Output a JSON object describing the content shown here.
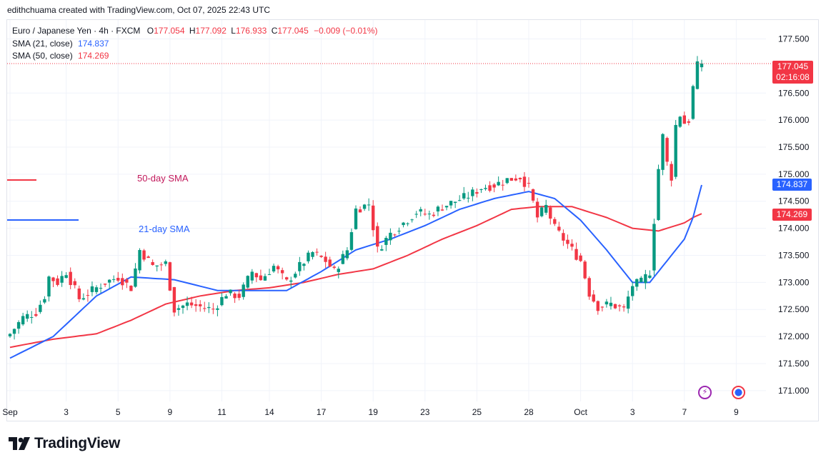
{
  "header": {
    "caption": "edithchuama created with TradingView.com, Oct 07, 2025 22:43 UTC"
  },
  "legend": {
    "symbol": "Euro / Japanese Yen · 4h · FXCM",
    "o_key": "O",
    "o_val": "177.054",
    "h_key": "H",
    "h_val": "177.092",
    "l_key": "L",
    "l_val": "176.933",
    "c_key": "C",
    "c_val": "177.045",
    "change": "−0.009 (−0.01%)",
    "sma21_label": "SMA (21, close)",
    "sma21_val": "174.837",
    "sma50_label": "SMA (50, close)",
    "sma50_val": "174.269"
  },
  "badges": {
    "last_price": "177.045",
    "countdown": "02:16:08",
    "sma21": "174.837",
    "sma50": "174.269"
  },
  "annotations": {
    "sma50": "50-day SMA",
    "sma21": "21-day SMA"
  },
  "logo": {
    "text": "TradingView"
  },
  "colors": {
    "up": "#089981",
    "down": "#f23645",
    "sma21": "#2962ff",
    "sma50": "#f23645",
    "grid": "#f0f3fa"
  },
  "chart_data": {
    "type": "candlestick",
    "title": "Euro / Japanese Yen · 4h · FXCM",
    "ylim": [
      170.8,
      177.85
    ],
    "y_ticks": [
      "171.000",
      "171.500",
      "172.000",
      "172.500",
      "173.000",
      "173.500",
      "174.000",
      "174.500",
      "175.000",
      "175.500",
      "176.000",
      "176.500",
      "177.500"
    ],
    "x_ticks": [
      {
        "label": "Sep",
        "i": 0
      },
      {
        "label": "3",
        "i": 13
      },
      {
        "label": "5",
        "i": 25
      },
      {
        "label": "9",
        "i": 37
      },
      {
        "label": "11",
        "i": 49
      },
      {
        "label": "14",
        "i": 60
      },
      {
        "label": "17",
        "i": 72
      },
      {
        "label": "19",
        "i": 84
      },
      {
        "label": "23",
        "i": 96
      },
      {
        "label": "25",
        "i": 108
      },
      {
        "label": "28",
        "i": 120
      },
      {
        "label": "Oct",
        "i": 132
      },
      {
        "label": "3",
        "i": 144
      },
      {
        "label": "7",
        "i": 156
      },
      {
        "label": "9",
        "i": 168
      }
    ],
    "n_slots": 180,
    "close_keypoints": [
      [
        0,
        172.05
      ],
      [
        3,
        172.35
      ],
      [
        6,
        172.45
      ],
      [
        8,
        172.75
      ],
      [
        9,
        173.1
      ],
      [
        11,
        173.0
      ],
      [
        13,
        173.2
      ],
      [
        16,
        172.7
      ],
      [
        19,
        172.85
      ],
      [
        22,
        173.0
      ],
      [
        25,
        173.1
      ],
      [
        28,
        172.9
      ],
      [
        30,
        173.6
      ],
      [
        33,
        173.3
      ],
      [
        36,
        173.35
      ],
      [
        38,
        172.5
      ],
      [
        41,
        172.6
      ],
      [
        44,
        172.55
      ],
      [
        47,
        172.5
      ],
      [
        50,
        172.8
      ],
      [
        53,
        172.75
      ],
      [
        56,
        173.2
      ],
      [
        58,
        173.05
      ],
      [
        61,
        173.3
      ],
      [
        64,
        173.0
      ],
      [
        67,
        173.3
      ],
      [
        70,
        173.55
      ],
      [
        73,
        173.4
      ],
      [
        75,
        173.2
      ],
      [
        78,
        173.6
      ],
      [
        80,
        174.35
      ],
      [
        83,
        174.45
      ],
      [
        85,
        173.6
      ],
      [
        88,
        173.9
      ],
      [
        91,
        174.1
      ],
      [
        94,
        174.3
      ],
      [
        97,
        174.25
      ],
      [
        100,
        174.4
      ],
      [
        103,
        174.5
      ],
      [
        106,
        174.6
      ],
      [
        109,
        174.75
      ],
      [
        112,
        174.8
      ],
      [
        115,
        174.9
      ],
      [
        118,
        174.95
      ],
      [
        120,
        174.75
      ],
      [
        122,
        174.2
      ],
      [
        124,
        174.4
      ],
      [
        126,
        174.0
      ],
      [
        128,
        173.8
      ],
      [
        130,
        173.6
      ],
      [
        132,
        173.4
      ],
      [
        134,
        172.8
      ],
      [
        136,
        172.55
      ],
      [
        139,
        172.6
      ],
      [
        142,
        172.5
      ],
      [
        144,
        172.95
      ],
      [
        146,
        173.0
      ],
      [
        148,
        173.2
      ],
      [
        150,
        175.1
      ],
      [
        151,
        175.7
      ],
      [
        152,
        175.2
      ],
      [
        153,
        174.95
      ],
      [
        154,
        175.9
      ],
      [
        155,
        176.1
      ],
      [
        156,
        175.95
      ],
      [
        157,
        176.0
      ],
      [
        158,
        176.6
      ],
      [
        159,
        177.0
      ],
      [
        160,
        177.04
      ]
    ],
    "sma21_keypoints": [
      [
        0,
        171.6
      ],
      [
        10,
        172.0
      ],
      [
        20,
        172.75
      ],
      [
        28,
        173.1
      ],
      [
        38,
        173.05
      ],
      [
        48,
        172.85
      ],
      [
        56,
        172.85
      ],
      [
        64,
        172.85
      ],
      [
        72,
        173.2
      ],
      [
        80,
        173.6
      ],
      [
        88,
        173.8
      ],
      [
        96,
        174.05
      ],
      [
        104,
        174.35
      ],
      [
        112,
        174.55
      ],
      [
        120,
        174.68
      ],
      [
        126,
        174.55
      ],
      [
        132,
        174.15
      ],
      [
        138,
        173.6
      ],
      [
        144,
        173.0
      ],
      [
        148,
        173.0
      ],
      [
        152,
        173.4
      ],
      [
        156,
        173.8
      ],
      [
        158,
        174.2
      ],
      [
        160,
        174.8
      ]
    ],
    "sma50_keypoints": [
      [
        0,
        171.8
      ],
      [
        10,
        171.95
      ],
      [
        20,
        172.05
      ],
      [
        28,
        172.3
      ],
      [
        36,
        172.6
      ],
      [
        44,
        172.75
      ],
      [
        52,
        172.85
      ],
      [
        60,
        172.9
      ],
      [
        68,
        173.0
      ],
      [
        76,
        173.15
      ],
      [
        84,
        173.25
      ],
      [
        92,
        173.5
      ],
      [
        100,
        173.8
      ],
      [
        108,
        174.05
      ],
      [
        116,
        174.35
      ],
      [
        122,
        174.4
      ],
      [
        130,
        174.4
      ],
      [
        138,
        174.2
      ],
      [
        144,
        174.0
      ],
      [
        150,
        173.95
      ],
      [
        154,
        174.05
      ],
      [
        156,
        174.1
      ],
      [
        158,
        174.2
      ],
      [
        160,
        174.27
      ]
    ],
    "last_price": 177.045
  }
}
